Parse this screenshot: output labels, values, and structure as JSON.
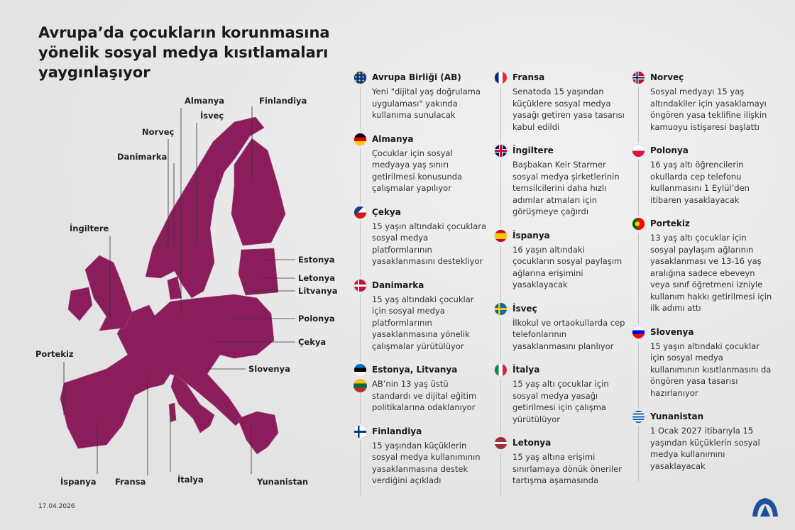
{
  "title": "Avrupa’da çocukların korunmasına yönelik sosyal medya kısıtlamaları yaygınlaşıyor",
  "date": "17.04.2026",
  "map_color": "#8b1d5c",
  "map_labels": [
    "Almanya",
    "İsveç",
    "Finlandiya",
    "Norveç",
    "Danimarka",
    "İngiltere",
    "Estonya",
    "Letonya",
    "Litvanya",
    "Polonya",
    "Çekya",
    "Slovenya",
    "Portekiz",
    "İspanya",
    "Fransa",
    "İtalya",
    "Yunanistan"
  ],
  "columns": [
    [
      {
        "flag": "eu",
        "title": "Avrupa Birliği (AB)",
        "text": "Yeni \"dijital yaş doğrulama uygulaması\" yakında kullanıma sunulacak"
      },
      {
        "flag": "de",
        "title": "Almanya",
        "text": "Çocuklar için sosyal medyaya yaş sınırı getirilmesi konusunda çalışmalar yapılıyor"
      },
      {
        "flag": "cz",
        "title": "Çekya",
        "text": "15 yaşın altındaki çocuklara sosyal medya platformlarının yasaklanmasını destekliyor"
      },
      {
        "flag": "dk",
        "title": "Danimarka",
        "text": "15 yaş altındaki çocuklar için sosyal medya platformlarının yasaklanmasına yönelik çalışmalar yürütülüyor"
      },
      {
        "flag": "ee",
        "flag2": "lt",
        "title": "Estonya, Litvanya",
        "text": "AB’nin 13 yaş üstü standardı ve dijital eğitim politikalarına odaklanıyor"
      },
      {
        "flag": "fi",
        "title": "Finlandiya",
        "text": "15 yaşından küçüklerin sosyal medya kullanımının yasaklanmasına destek verdiğini açıkladı"
      }
    ],
    [
      {
        "flag": "fr",
        "title": "Fransa",
        "text": "Senatoda 15 yaşından küçüklere sosyal medya yasağı getiren yasa tasarısı kabul edildi"
      },
      {
        "flag": "gb",
        "title": "İngiltere",
        "text": "Başbakan Keir Starmer sosyal medya şirketlerinin temsilcilerini daha hızlı adımlar atmaları için görüşmeye çağırdı"
      },
      {
        "flag": "es",
        "title": "İspanya",
        "text": "16 yaşın altındaki çocukların sosyal paylaşım ağlarına erişimini yasaklayacak"
      },
      {
        "flag": "se",
        "title": "İsveç",
        "text": "İlkokul ve ortaokullarda cep telefonlarının yasaklanmasını planlıyor"
      },
      {
        "flag": "it",
        "title": "İtalya",
        "text": "15 yaş altı çocuklar için sosyal medya yasağı getirilmesi için çalışma yürütülüyor"
      },
      {
        "flag": "lv",
        "title": "Letonya",
        "text": "15 yaş altına erişimi sınırlamaya dönük öneriler tartışma aşamasında"
      }
    ],
    [
      {
        "flag": "no",
        "title": "Norveç",
        "text": " Sosyal medyayı 15 yaş altındakiler için yasaklamayı öngören yasa teklifine ilişkin kamuoyu istişaresi başlattı"
      },
      {
        "flag": "pl",
        "title": "Polonya",
        "text": "16 yaş altı öğrencilerin okullarda cep telefonu kullanmasını 1 Eylül’den itibaren yasaklayacak"
      },
      {
        "flag": "pt",
        "title": "Portekiz",
        "text": "13 yaş altı çocuklar için sosyal paylaşım ağlarının yasaklanması ve 13-16 yaş aralığına sadece ebeveyn veya sınıf öğretmeni izniyle kullanım hakkı getirilmesi için ilk adımı attı"
      },
      {
        "flag": "si",
        "title": "Slovenya",
        "text": "15 yaşın altındaki çocuklar için sosyal medya kullanımının kısıtlanmasını da öngören yasa tasarısı hazırlanıyor"
      },
      {
        "flag": "gr",
        "title": "Yunanistan",
        "text": "1 Ocak 2027 itibarıyla 15 yaşından küçüklerin sosyal medya kullanımını yasaklayacak"
      }
    ]
  ],
  "logo": "AA"
}
